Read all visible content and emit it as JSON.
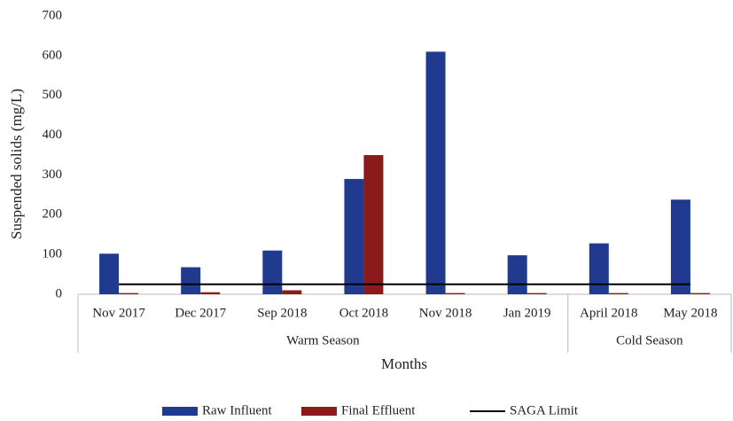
{
  "chart_data": {
    "type": "bar",
    "ylabel": "Suspended solids (mg/L)",
    "xlabel": "Months",
    "categories": [
      "Nov 2017",
      "Dec 2017",
      "Sep 2018",
      "Oct 2018",
      "Nov 2018",
      "Jan 2019",
      "April 2018",
      "May 2018"
    ],
    "groups": [
      {
        "name": "Warm Season",
        "count": 6
      },
      {
        "name": "Cold Season",
        "count": 2
      }
    ],
    "series": [
      {
        "name": "Raw Influent",
        "color": "#1f3a8f",
        "type": "bar",
        "values": [
          102,
          68,
          110,
          290,
          610,
          98,
          128,
          238
        ]
      },
      {
        "name": "Final Effluent",
        "color": "#8b1a1a",
        "type": "bar",
        "values": [
          3,
          5,
          10,
          350,
          3,
          3,
          3,
          3
        ]
      },
      {
        "name": "SAGA Limit",
        "color": "#000000",
        "type": "line",
        "values": [
          25,
          25,
          25,
          25,
          25,
          25,
          25,
          25
        ]
      }
    ],
    "ylim": [
      0,
      700
    ],
    "yticks": [
      0,
      100,
      200,
      300,
      400,
      500,
      600,
      700
    ],
    "legend": "bottom"
  }
}
